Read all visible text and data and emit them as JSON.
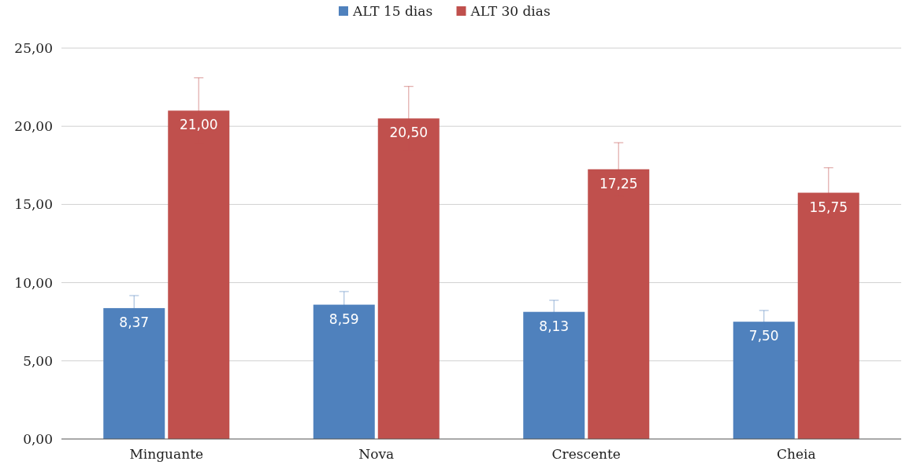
{
  "chart_data": {
    "type": "bar",
    "categories": [
      "Minguante",
      "Nova",
      "Crescente",
      "Cheia"
    ],
    "series": [
      {
        "name": "ALT 15 dias",
        "color": "#4f81bd",
        "values": [
          8.37,
          8.59,
          8.13,
          7.5
        ],
        "errors": [
          0.8,
          0.84,
          0.74,
          0.72
        ],
        "value_labels": [
          "8,37",
          "8,59",
          "8,13",
          "7,50"
        ]
      },
      {
        "name": "ALT 30 dias",
        "color": "#c0504d",
        "values": [
          21,
          20.5,
          17.25,
          15.75
        ],
        "errors": [
          2.1,
          2.05,
          1.7,
          1.6
        ],
        "value_labels": [
          "21,00",
          "20,50",
          "17,25",
          "15,75"
        ]
      }
    ],
    "ylim": [
      0,
      25
    ],
    "yticks": [
      {
        "value": 0,
        "label": "0,00"
      },
      {
        "value": 5,
        "label": "5,00"
      },
      {
        "value": 10,
        "label": "10,00"
      },
      {
        "value": 15,
        "label": "15,00"
      },
      {
        "value": 20,
        "label": "20,00"
      },
      {
        "value": 25,
        "label": "25,00"
      }
    ],
    "grid": "y",
    "legend": "top"
  }
}
